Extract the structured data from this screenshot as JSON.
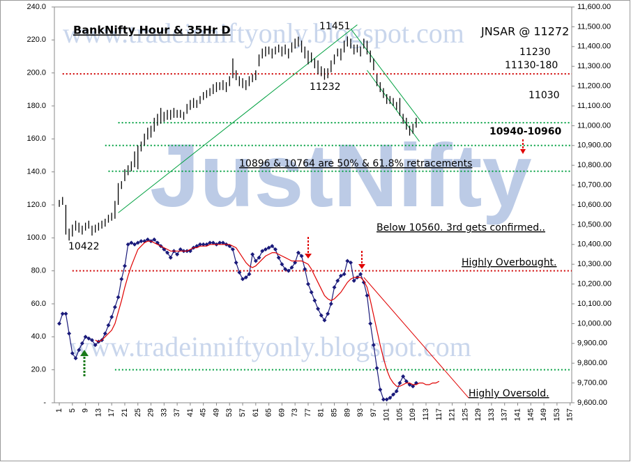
{
  "chart_data": {
    "type": "combo",
    "title": "BankNifty Hour & 35Hr D",
    "x": [
      1,
      2,
      3,
      4,
      5,
      6,
      7,
      8,
      9,
      10,
      11,
      12,
      13,
      14,
      15,
      16,
      17,
      18,
      19,
      20,
      21,
      22,
      23,
      24,
      25,
      26,
      27,
      28,
      29,
      30,
      31,
      32,
      33,
      34,
      35,
      36,
      37,
      38,
      39,
      40,
      41,
      42,
      43,
      44,
      45,
      46,
      47,
      48,
      49,
      50,
      51,
      52,
      53,
      54,
      55,
      56,
      57,
      58,
      59,
      60,
      61,
      62,
      63,
      64,
      65,
      66,
      67,
      68,
      69,
      70,
      71,
      72,
      73,
      74,
      75,
      76,
      77,
      78,
      79,
      80,
      81,
      82,
      83,
      84,
      85,
      86,
      87,
      88,
      89,
      90,
      91,
      92,
      93,
      94,
      95,
      96,
      97,
      98,
      99,
      100,
      101,
      102,
      103,
      104,
      105,
      106,
      107,
      108,
      109,
      110,
      111,
      112,
      113,
      114,
      115,
      116,
      117
    ],
    "series": [
      {
        "type": "ohlc",
        "axis": "y2",
        "color": "#000000",
        "high": [
          10625,
          10640,
          10600,
          10480,
          10500,
          10520,
          10510,
          10495,
          10510,
          10520,
          10495,
          10500,
          10510,
          10520,
          10530,
          10550,
          10560,
          10620,
          10710,
          10720,
          10780,
          10800,
          10820,
          10870,
          10900,
          10920,
          10960,
          10990,
          11000,
          11040,
          11060,
          11090,
          11070,
          11080,
          11080,
          11090,
          11080,
          11080,
          11070,
          11110,
          11130,
          11140,
          11130,
          11150,
          11170,
          11180,
          11190,
          11210,
          11220,
          11220,
          11230,
          11220,
          11250,
          11340,
          11280,
          11250,
          11240,
          11230,
          11250,
          11260,
          11280,
          11360,
          11390,
          11400,
          11400,
          11390,
          11400,
          11410,
          11400,
          11410,
          11390,
          11420,
          11440,
          11450,
          11430,
          11400,
          11380,
          11370,
          11340,
          11330,
          11300,
          11290,
          11290,
          11330,
          11360,
          11390,
          11390,
          11430,
          11451,
          11440,
          11410,
          11410,
          11400,
          11440,
          11430,
          11380,
          11340,
          11260,
          11220,
          11190,
          11160,
          11150,
          11140,
          11120,
          11140,
          11060,
          11040,
          11000,
          11010,
          11040,
          null,
          null,
          null,
          null,
          null,
          null,
          null
        ],
        "low": [
          10590,
          10600,
          10450,
          10420,
          10440,
          10470,
          10460,
          10450,
          10470,
          10480,
          10445,
          10460,
          10470,
          10480,
          10490,
          10510,
          10520,
          10530,
          10600,
          10680,
          10720,
          10750,
          10770,
          10790,
          10780,
          10870,
          10900,
          10930,
          10940,
          10970,
          11000,
          11010,
          11020,
          11030,
          11030,
          11040,
          11040,
          11040,
          11030,
          11060,
          11080,
          11090,
          11090,
          11110,
          11130,
          11140,
          11150,
          11160,
          11170,
          11180,
          11180,
          11170,
          11200,
          11240,
          11230,
          11200,
          11190,
          11180,
          11200,
          11220,
          11230,
          11300,
          11340,
          11350,
          11360,
          11340,
          11360,
          11370,
          11350,
          11360,
          11340,
          11370,
          11390,
          11400,
          11370,
          11340,
          11310,
          11320,
          11290,
          11260,
          11250,
          11232,
          11240,
          11270,
          11310,
          11350,
          11330,
          11370,
          11400,
          11390,
          11360,
          11370,
          11350,
          11390,
          11360,
          11320,
          11280,
          11200,
          11170,
          11140,
          11110,
          11110,
          11100,
          11080,
          11050,
          11010,
          10980,
          10950,
          10960,
          10990,
          null,
          null,
          null,
          null,
          null,
          null,
          null
        ]
      },
      {
        "type": "line",
        "axis": "y",
        "color": "#1a1a7a",
        "markers": true,
        "values": [
          48,
          54,
          54,
          42,
          30,
          27,
          32,
          36,
          40,
          39,
          38,
          35,
          37,
          38,
          42,
          47,
          52,
          58,
          64,
          75,
          83,
          96,
          97,
          96,
          97,
          98,
          98,
          99,
          98,
          99,
          97,
          95,
          93,
          91,
          88,
          92,
          90,
          93,
          92,
          92,
          92,
          94,
          95,
          96,
          96,
          96,
          97,
          97,
          96,
          97,
          97,
          96,
          95,
          93,
          85,
          79,
          75,
          76,
          78,
          90,
          86,
          88,
          92,
          93,
          94,
          95,
          93,
          88,
          84,
          81,
          80,
          82,
          85,
          91,
          89,
          81,
          72,
          67,
          62,
          57,
          53,
          50,
          54,
          60,
          70,
          74,
          77,
          78,
          86,
          85,
          74,
          76,
          78,
          73,
          65,
          48,
          35,
          21,
          8,
          2,
          2,
          3,
          5,
          7,
          12,
          16,
          13,
          11,
          10,
          12,
          null,
          null,
          null,
          null,
          null,
          null,
          null
        ]
      },
      {
        "type": "line",
        "axis": "y",
        "color": "#e00000",
        "markers": false,
        "values": [
          null,
          null,
          null,
          null,
          null,
          null,
          null,
          null,
          null,
          null,
          null,
          38,
          37,
          38,
          40,
          42,
          44,
          48,
          55,
          62,
          70,
          77,
          83,
          88,
          93,
          95,
          97,
          98,
          98,
          97,
          96,
          95,
          94,
          93,
          92,
          92,
          92,
          92,
          92,
          92,
          93,
          94,
          94,
          95,
          95,
          95,
          96,
          96,
          96,
          96,
          96,
          96,
          96,
          95,
          94,
          91,
          88,
          85,
          83,
          82,
          83,
          85,
          87,
          89,
          90,
          91,
          91,
          90,
          89,
          88,
          87,
          86,
          86,
          86,
          86,
          85,
          84,
          81,
          77,
          73,
          69,
          65,
          63,
          62,
          63,
          65,
          67,
          70,
          73,
          75,
          76,
          76,
          76,
          74,
          70,
          62,
          53,
          44,
          35,
          27,
          20,
          15,
          12,
          10,
          10,
          11,
          12,
          12,
          11,
          11,
          12,
          12,
          11,
          11,
          12,
          12,
          13
        ]
      }
    ],
    "levels": [
      {
        "axis": "y2",
        "value": 11262,
        "from": 2,
        "color": "#d00000"
      },
      {
        "axis": "y2",
        "value": 11015,
        "from": 19,
        "color": "#00a040"
      },
      {
        "axis": "y2",
        "value": 10900,
        "from": 15,
        "color": "#00a040"
      },
      {
        "axis": "y2",
        "value": 10770,
        "from": 16,
        "color": "#00a040"
      },
      {
        "axis": "y",
        "value": 80,
        "from": 5,
        "color": "#d00000"
      },
      {
        "axis": "y",
        "value": 20,
        "from": 18,
        "color": "#00a040"
      }
    ],
    "trendlines": [
      {
        "axis": "y2",
        "x": [
          19,
          92
        ],
        "y": [
          10560,
          11510
        ],
        "color": "#00a040"
      },
      {
        "axis": "y2",
        "x": [
          90,
          112
        ],
        "y": [
          11490,
          11010
        ],
        "color": "#00a040"
      },
      {
        "axis": "y2",
        "x": [
          95,
          111
        ],
        "y": [
          11280,
          10920
        ],
        "color": "#00a040"
      },
      {
        "axis": "y",
        "x": [
          94,
          126
        ],
        "y": [
          76,
          3
        ],
        "color": "#e00000"
      }
    ],
    "annotations": [
      {
        "text": "11451",
        "color": "#e00000"
      },
      {
        "text": "JNSAR @ 11272",
        "color": "#e00000"
      },
      {
        "text": "11230",
        "color": "#e00000"
      },
      {
        "text": "11130-180",
        "color": "#e00000"
      },
      {
        "text": "11232",
        "color": "#1a7a1a"
      },
      {
        "text": "11030",
        "color": "#e000e0"
      },
      {
        "text": "10940-10960",
        "color": "#1a7a1a"
      },
      {
        "text": "10896 & 10764 are 50%  & 61.8%  retracements",
        "color": "#e00000"
      },
      {
        "text": "10422",
        "color": "#1a7a1a"
      },
      {
        "text": "Below 10560. 3rd gets confirmed..",
        "color": "#e00000"
      },
      {
        "text": "Highly Overbought.",
        "color": "#e00000"
      },
      {
        "text": "Highly Oversold.",
        "color": "#00a040"
      }
    ],
    "watermarks": [
      "www.tradeinniftyonly.blogspot.com",
      "JustNifty",
      "www.tradeinniftyonly.blogspot.com"
    ],
    "xlim": [
      -0.5,
      157.5
    ],
    "xticks": [
      1,
      5,
      9,
      13,
      17,
      21,
      25,
      29,
      33,
      37,
      41,
      45,
      49,
      53,
      57,
      61,
      65,
      69,
      73,
      77,
      81,
      85,
      89,
      93,
      97,
      101,
      105,
      109,
      113,
      117,
      121,
      125,
      129,
      133,
      137,
      141,
      145,
      149,
      153,
      157
    ],
    "ylim": [
      0,
      240
    ],
    "yticks": [
      {
        "value": 0,
        "label": "-"
      },
      {
        "value": 20,
        "label": "20.0"
      },
      {
        "value": 40,
        "label": "40.0"
      },
      {
        "value": 60,
        "label": "60.0"
      },
      {
        "value": 80,
        "label": "80.0"
      },
      {
        "value": 100,
        "label": "100.0"
      },
      {
        "value": 120,
        "label": "120.0"
      },
      {
        "value": 140,
        "label": "140.0"
      },
      {
        "value": 160,
        "label": "160.0"
      },
      {
        "value": 180,
        "label": "180.0"
      },
      {
        "value": 200,
        "label": "200.0"
      },
      {
        "value": 220,
        "label": "220.0"
      },
      {
        "value": 240,
        "label": "240.0"
      }
    ],
    "y2lim": [
      9600,
      11600
    ],
    "y2ticks": [
      {
        "value": 9600,
        "label": "9,600.00"
      },
      {
        "value": 9700,
        "label": "9,700.00"
      },
      {
        "value": 9800,
        "label": "9,800.00"
      },
      {
        "value": 9900,
        "label": "9,900.00"
      },
      {
        "value": 10000,
        "label": "10,000.00"
      },
      {
        "value": 10100,
        "label": "10,100.00"
      },
      {
        "value": 10200,
        "label": "10,200.00"
      },
      {
        "value": 10300,
        "label": "10,300.00"
      },
      {
        "value": 10400,
        "label": "10,400.00"
      },
      {
        "value": 10500,
        "label": "10,500.00"
      },
      {
        "value": 10600,
        "label": "10,600.00"
      },
      {
        "value": 10700,
        "label": "10,700.00"
      },
      {
        "value": 10800,
        "label": "10,800.00"
      },
      {
        "value": 10900,
        "label": "10,900.00"
      },
      {
        "value": 11000,
        "label": "11,000.00"
      },
      {
        "value": 11100,
        "label": "11,100.00"
      },
      {
        "value": 11200,
        "label": "11,200.00"
      },
      {
        "value": 11300,
        "label": "11,300.00"
      },
      {
        "value": 11400,
        "label": "11,400.00"
      },
      {
        "value": 11500,
        "label": "11,500.00"
      },
      {
        "value": 11600,
        "label": "11,600.00"
      }
    ]
  }
}
